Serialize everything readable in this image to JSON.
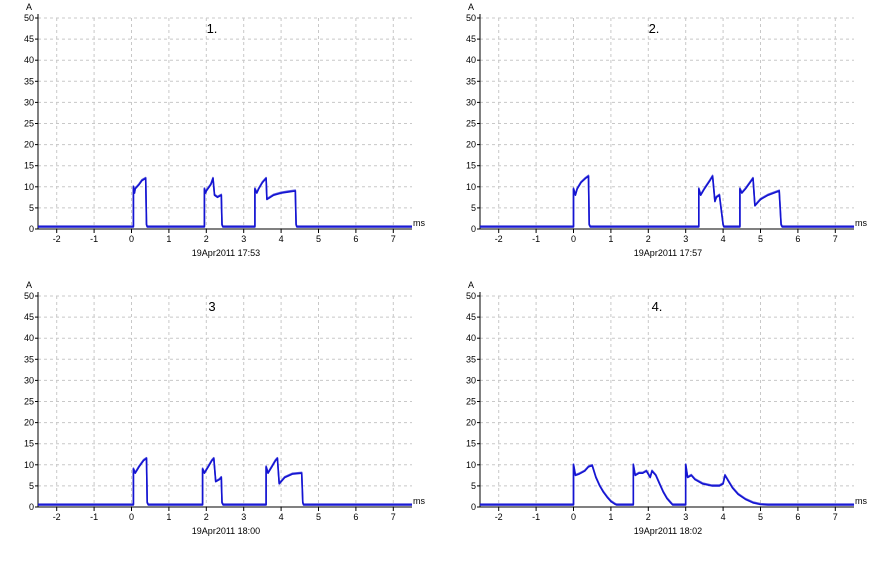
{
  "colors": {
    "trace": "#1414d2",
    "grid": "#c8c8c8",
    "axis": "#000000"
  },
  "chart_data": [
    {
      "type": "line",
      "title": "1.",
      "timestamp": "19Apr2011   17:53",
      "ylabel": "A",
      "xlabel": "ms",
      "xlim": [
        -2.5,
        7.5
      ],
      "ylim": [
        0,
        50
      ],
      "xticks": [
        "-2",
        "-1",
        "0",
        "1",
        "2",
        "3",
        "4",
        "5",
        "6",
        "7"
      ],
      "yticks": [
        "0",
        "5",
        "10",
        "15",
        "20",
        "25",
        "30",
        "35",
        "40",
        "45",
        "50"
      ],
      "grid": true,
      "series": [
        {
          "x": [
            -2.5,
            0.05,
            0.05,
            0.08,
            0.1,
            0.2,
            0.28,
            0.38,
            0.4,
            0.42,
            1.95,
            1.95,
            1.98,
            2.0,
            2.12,
            2.18,
            2.22,
            2.3,
            2.4,
            2.42,
            2.44,
            2.45,
            3.3,
            3.3,
            3.35,
            3.4,
            3.5,
            3.6,
            3.62,
            3.8,
            4.0,
            4.2,
            4.38,
            4.4,
            4.42,
            7.5
          ],
          "y": [
            0.5,
            0.5,
            10.0,
            8.5,
            9.5,
            10.5,
            11.5,
            12.0,
            1.0,
            0.5,
            0.5,
            9.5,
            8.5,
            9.0,
            10.5,
            12.0,
            8.0,
            7.5,
            8.0,
            1.0,
            0.5,
            0.5,
            0.5,
            9.5,
            8.5,
            9.5,
            11.0,
            12.0,
            7.0,
            8.0,
            8.5,
            8.8,
            9.0,
            1.0,
            0.5,
            0.5
          ]
        }
      ]
    },
    {
      "type": "line",
      "title": "2.",
      "timestamp": "19Apr2011   17:57",
      "ylabel": "A",
      "xlabel": "ms",
      "xlim": [
        -2.5,
        7.5
      ],
      "ylim": [
        0,
        50
      ],
      "xticks": [
        "-2",
        "-1",
        "0",
        "1",
        "2",
        "3",
        "4",
        "5",
        "6",
        "7"
      ],
      "yticks": [
        "0",
        "5",
        "10",
        "15",
        "20",
        "25",
        "30",
        "35",
        "40",
        "45",
        "50"
      ],
      "grid": true,
      "series": [
        {
          "x": [
            -2.5,
            0.0,
            0.0,
            0.05,
            0.1,
            0.2,
            0.32,
            0.4,
            0.42,
            0.45,
            3.35,
            3.35,
            3.4,
            3.5,
            3.65,
            3.72,
            3.78,
            3.82,
            3.9,
            4.0,
            4.02,
            4.05,
            4.45,
            4.45,
            4.5,
            4.6,
            4.72,
            4.8,
            4.85,
            5.0,
            5.2,
            5.5,
            5.55,
            5.58,
            7.5
          ],
          "y": [
            0.5,
            0.5,
            9.5,
            8.0,
            9.5,
            11.0,
            12.0,
            12.5,
            1.0,
            0.5,
            0.5,
            9.5,
            8.0,
            9.5,
            11.5,
            12.5,
            6.5,
            7.5,
            8.0,
            1.0,
            0.5,
            0.5,
            0.5,
            9.5,
            8.5,
            9.5,
            11.0,
            12.0,
            5.5,
            7.0,
            8.0,
            9.0,
            1.0,
            0.5,
            0.5
          ]
        }
      ]
    },
    {
      "type": "line",
      "title": "3",
      "timestamp": "19Apr2011   18:00",
      "ylabel": "A",
      "xlabel": "ms",
      "xlim": [
        -2.5,
        7.5
      ],
      "ylim": [
        0,
        50
      ],
      "xticks": [
        "-2",
        "-1",
        "0",
        "1",
        "2",
        "3",
        "4",
        "5",
        "6",
        "7"
      ],
      "yticks": [
        "0",
        "5",
        "10",
        "15",
        "20",
        "25",
        "30",
        "35",
        "40",
        "45",
        "50"
      ],
      "grid": true,
      "series": [
        {
          "x": [
            -2.5,
            0.05,
            0.05,
            0.1,
            0.2,
            0.32,
            0.4,
            0.42,
            0.45,
            1.9,
            1.9,
            1.95,
            2.05,
            2.15,
            2.2,
            2.25,
            2.35,
            2.4,
            2.42,
            2.45,
            3.6,
            3.6,
            3.65,
            3.75,
            3.85,
            3.9,
            3.95,
            4.1,
            4.3,
            4.55,
            4.58,
            4.6,
            7.5
          ],
          "y": [
            0.5,
            0.5,
            9.0,
            8.0,
            9.5,
            11.0,
            11.5,
            1.0,
            0.5,
            0.5,
            9.0,
            8.0,
            9.5,
            11.0,
            11.5,
            6.0,
            6.5,
            7.0,
            1.0,
            0.5,
            0.5,
            9.5,
            8.0,
            9.5,
            11.0,
            11.5,
            5.5,
            7.0,
            7.8,
            8.0,
            1.0,
            0.5,
            0.5
          ]
        }
      ]
    },
    {
      "type": "line",
      "title": "4.",
      "timestamp": "19Apr2011   18:02",
      "ylabel": "A",
      "xlabel": "ms",
      "xlim": [
        -2.5,
        7.5
      ],
      "ylim": [
        0,
        50
      ],
      "xticks": [
        "-2",
        "-1",
        "0",
        "1",
        "2",
        "3",
        "4",
        "5",
        "6",
        "7"
      ],
      "yticks": [
        "0",
        "5",
        "10",
        "15",
        "20",
        "25",
        "30",
        "35",
        "40",
        "45",
        "50"
      ],
      "grid": true,
      "series": [
        {
          "x": [
            -2.5,
            0.0,
            0.0,
            0.05,
            0.15,
            0.3,
            0.4,
            0.5,
            0.6,
            0.7,
            0.8,
            0.9,
            1.0,
            1.1,
            1.15,
            1.6,
            1.6,
            1.65,
            1.75,
            1.85,
            1.95,
            2.05,
            2.1,
            2.2,
            2.3,
            2.4,
            2.5,
            2.6,
            2.65,
            3.0,
            3.0,
            3.05,
            3.15,
            3.25,
            3.45,
            3.7,
            3.9,
            4.0,
            4.05,
            4.15,
            4.25,
            4.4,
            4.6,
            4.8,
            5.0,
            5.2,
            7.5
          ],
          "y": [
            0.5,
            0.5,
            10.0,
            7.5,
            7.8,
            8.5,
            9.5,
            9.8,
            7.0,
            5.0,
            3.5,
            2.3,
            1.3,
            0.7,
            0.5,
            0.5,
            10.0,
            7.5,
            8.0,
            8.0,
            8.5,
            7.0,
            8.5,
            7.5,
            5.5,
            3.5,
            2.0,
            1.0,
            0.5,
            0.5,
            10.0,
            7.0,
            7.5,
            6.5,
            5.5,
            5.0,
            5.0,
            5.5,
            7.5,
            6.0,
            4.5,
            3.0,
            1.8,
            1.0,
            0.6,
            0.5,
            0.5
          ]
        }
      ]
    }
  ]
}
